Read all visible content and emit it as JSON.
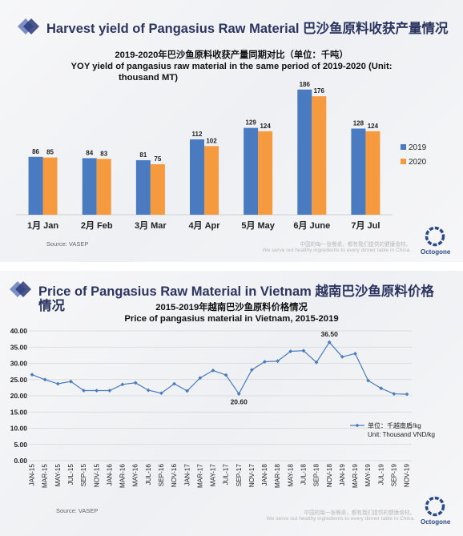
{
  "slide1": {
    "title": "Harvest yield of Pangasius Raw Material 巴沙鱼原料收获产量情况",
    "chart_title_zh": "2019-2020年巴沙鱼原料收获产量同期对比（单位：千吨）",
    "chart_title_en": "YOY yield of pangasius raw material in the same period of 2019-2020 (Unit:",
    "chart_title_en2": "thousand MT)",
    "source": "Source: VASEP",
    "watermark_zh": "中国的每一张餐桌，都有我们提供的健康食材。",
    "watermark_en": "We serve out healthy ingredients to every dinner table in China.",
    "brand": "Octogone"
  },
  "slide2": {
    "title": "Price of Pangasius Raw Material in Vietnam 越南巴沙鱼原料价格",
    "title_line2": "情况",
    "chart_title_zh": "2015-2019年越南巴沙鱼原料价格情况",
    "chart_title_en": "Price of pangasius material in Vietnam, 2015-2019",
    "source": "Source: VASEP",
    "watermark_zh": "中国的每一张餐桌，都有我们提供的健康食材。",
    "watermark_en": "We serve out healthy ingredients to every dinner table in China.",
    "brand": "Octogone"
  },
  "chart_data": [
    {
      "type": "bar",
      "categories": [
        "1月 Jan",
        "2月 Feb",
        "3月 Mar",
        "4月 Apr",
        "5月 May",
        "6月 June",
        "7月 Jul"
      ],
      "series": [
        {
          "name": "2019",
          "values": [
            86,
            84,
            81,
            112,
            129,
            186,
            128
          ],
          "color": "#4a7ac0"
        },
        {
          "name": "2020",
          "values": [
            85,
            83,
            75,
            102,
            124,
            176,
            124
          ],
          "color": "#f59a3e"
        }
      ],
      "ylim": [
        0,
        200
      ],
      "legend": "right",
      "grid": false,
      "data_labels": true
    },
    {
      "type": "line",
      "x": [
        "JAN-15",
        "MAR-15",
        "MAY-15",
        "JUL-15",
        "SEP-15",
        "NOV-15",
        "JAN-16",
        "MAR-16",
        "MAY-16",
        "JUL-16",
        "SEP-16",
        "NOV-16",
        "JAN-17",
        "MAR-17",
        "MAY-17",
        "JUL-17",
        "SEP-17",
        "NOV-17",
        "JAN-18",
        "MAR-18",
        "MAY-18",
        "JUL-18",
        "SEP-18",
        "NOV-18",
        "JAN-19",
        "MAR-19",
        "MAY-19",
        "JUL-19",
        "SEP-19",
        "NOV-19"
      ],
      "series": [
        {
          "name": "单位：千越南盾/kg Unit: Thousand VND/kg",
          "values": [
            26.5,
            25.0,
            23.7,
            24.4,
            21.6,
            21.6,
            21.6,
            23.5,
            24.0,
            21.7,
            20.8,
            23.7,
            21.5,
            25.5,
            27.8,
            26.4,
            20.6,
            28.0,
            30.5,
            30.7,
            33.7,
            33.9,
            30.3,
            36.5,
            32.0,
            33.0,
            24.7,
            22.3,
            20.6,
            20.5
          ],
          "color": "#4a7ac0"
        }
      ],
      "ylim": [
        0,
        40
      ],
      "yticks": [
        "0.00",
        "5.00",
        "10.00",
        "15.00",
        "20.00",
        "25.00",
        "30.00",
        "35.00",
        "40.00"
      ],
      "annotations": [
        {
          "x": "SEP-17",
          "label": "20.60"
        },
        {
          "x": "NOV-18",
          "label": "36.50"
        }
      ],
      "legend_zh": "单位：千越南盾/kg",
      "legend_en": "Unit: Thousand VND/kg",
      "legend": "right",
      "grid": true
    }
  ]
}
